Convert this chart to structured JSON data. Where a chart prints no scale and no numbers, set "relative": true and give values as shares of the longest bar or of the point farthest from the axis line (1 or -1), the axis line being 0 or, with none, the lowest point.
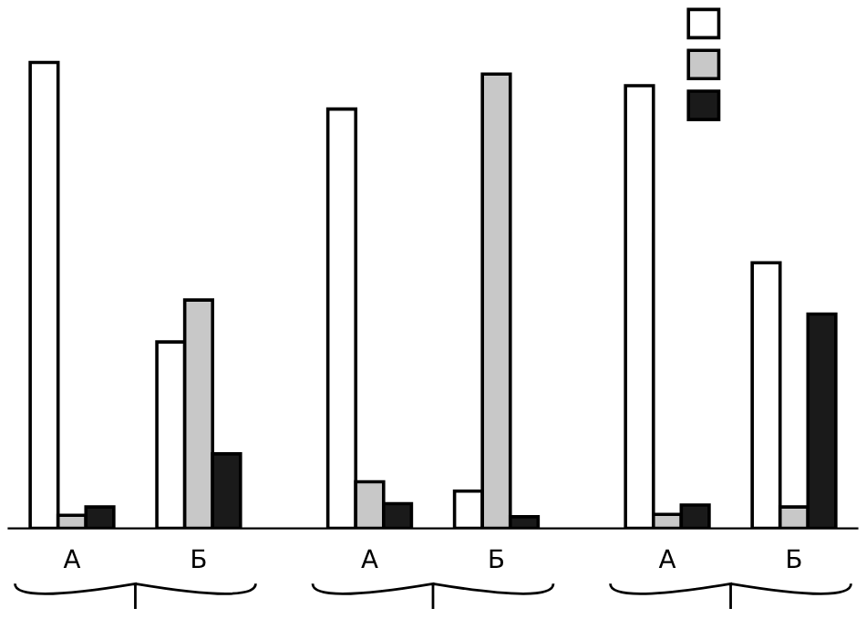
{
  "chart_data": {
    "type": "bar",
    "relative": true,
    "categories": [
      "А",
      "Б",
      "А",
      "Б",
      "А",
      "Б"
    ],
    "series": [
      {
        "color": "#ffffff",
        "values": [
          1.0,
          0.4,
          0.9,
          0.08,
          0.95,
          0.57
        ]
      },
      {
        "color": "#c8c8c8",
        "values": [
          0.028,
          0.49,
          0.1,
          0.975,
          0.03,
          0.046
        ]
      },
      {
        "color": "#1a1a1a",
        "values": [
          0.046,
          0.16,
          0.053,
          0.025,
          0.05,
          0.46
        ]
      }
    ],
    "grid": false
  }
}
